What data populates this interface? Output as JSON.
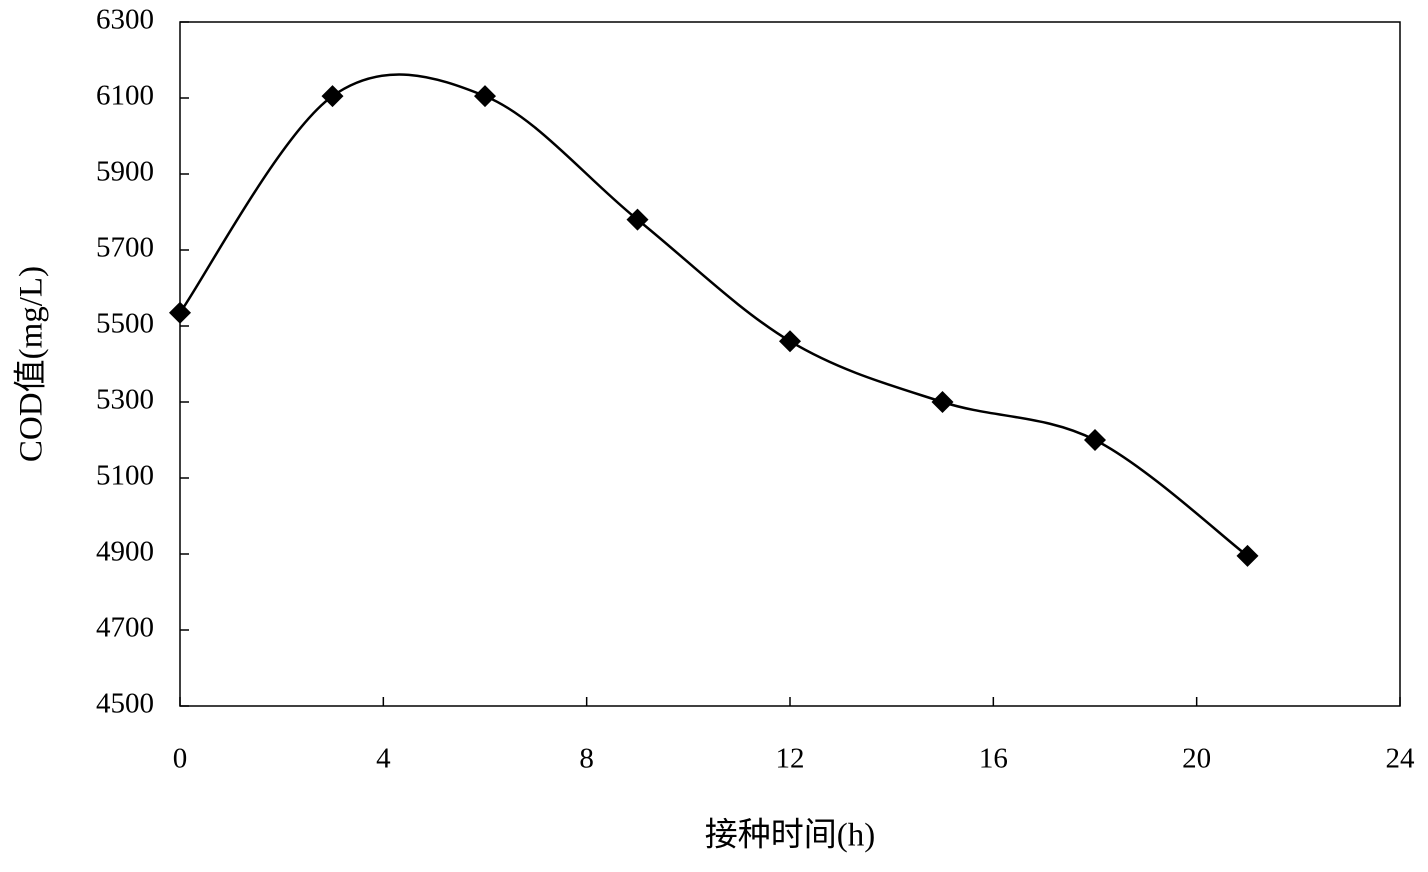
{
  "chart_data": {
    "type": "line",
    "x_label": "接种时间(h)",
    "y_label": "COD值(mg/L)",
    "x": [
      0,
      3,
      6,
      9,
      12,
      15,
      18,
      21
    ],
    "series": [
      {
        "color": "#000000",
        "values": [
          5535,
          6105,
          6105,
          5780,
          5460,
          5300,
          5200,
          4895
        ]
      }
    ],
    "xlim": [
      0,
      24
    ],
    "xticks": [
      0,
      4,
      8,
      12,
      16,
      20,
      24
    ],
    "ylim": [
      4500,
      6300
    ],
    "yticks": [
      4500,
      4700,
      4900,
      5100,
      5300,
      5500,
      5700,
      5900,
      6100,
      6300
    ],
    "smooth": true,
    "marker": "diamond",
    "grid": false
  }
}
